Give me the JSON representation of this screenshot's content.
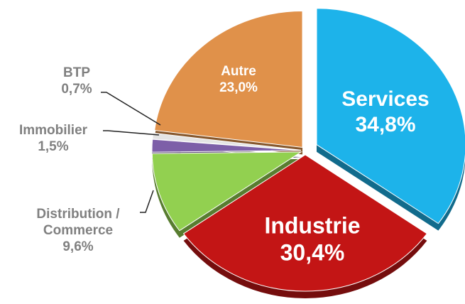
{
  "chart_data": {
    "type": "pie",
    "categories": [
      "Services",
      "Industrie",
      "Distribution / Commerce",
      "Immobilier",
      "BTP",
      "Autre"
    ],
    "values": [
      34.8,
      30.4,
      9.6,
      1.5,
      0.7,
      23.0
    ],
    "value_labels": [
      "34,8%",
      "30,4%",
      "9,6%",
      "1,5%",
      "0,7%",
      "23,0%"
    ],
    "colors": [
      "#1db3ea",
      "#c31515",
      "#92d050",
      "#7d5fa8",
      "#e4e4e4",
      "#e0914a"
    ]
  }
}
